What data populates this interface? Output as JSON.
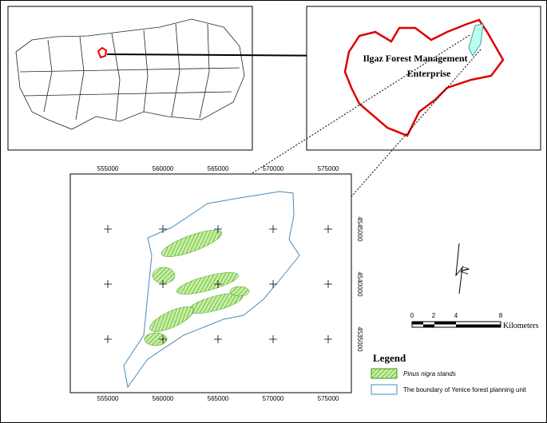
{
  "inset": {
    "title_lines": [
      "Ilgaz Forest Management",
      "Enterprise"
    ]
  },
  "map": {
    "x_ticks": [
      555000,
      560000,
      565000,
      570000,
      575000
    ],
    "y_ticks": [
      4545000,
      4540000,
      4535000
    ]
  },
  "north": {
    "label": "N"
  },
  "scale_bar": {
    "ticks": [
      "0",
      "2",
      "4",
      "8"
    ],
    "unit": "Kilometers"
  },
  "legend": {
    "title": "Legend",
    "items": [
      "Pinus nigra stands",
      "The boundary of Yenice forest planning unit"
    ]
  }
}
